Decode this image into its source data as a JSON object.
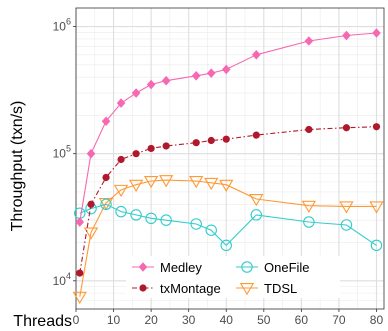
{
  "chart_data": {
    "type": "line",
    "title": "",
    "xlabel": "Threads",
    "ylabel": "Throughput (txn/s)",
    "y_scale": "log",
    "xlim": [
      0,
      82
    ],
    "ylim": [
      6000,
      1400000
    ],
    "x_ticks": [
      0,
      10,
      20,
      30,
      40,
      50,
      60,
      70,
      80
    ],
    "x_tick_labels": [
      "0",
      "10",
      "20",
      "30",
      "40",
      "50",
      "60",
      "70",
      "80"
    ],
    "y_ticks": [
      10000,
      100000,
      1000000
    ],
    "y_tick_labels": [
      {
        "base": "10",
        "exp": "4"
      },
      {
        "base": "10",
        "exp": "5"
      },
      {
        "base": "10",
        "exp": "6"
      }
    ],
    "grid": true,
    "legend": {
      "position": "bottom-center",
      "columns": 2
    },
    "series": [
      {
        "name": "Medley",
        "color": "#f768b2",
        "marker": "diamond",
        "line": "solid",
        "x": [
          1,
          4,
          8,
          12,
          16,
          20,
          24,
          32,
          36,
          40,
          48,
          62,
          72,
          80
        ],
        "y": [
          29000,
          100000,
          180000,
          250000,
          300000,
          350000,
          375000,
          410000,
          430000,
          460000,
          600000,
          770000,
          850000,
          890000
        ]
      },
      {
        "name": "txMontage",
        "color": "#b2182b",
        "marker": "circle",
        "line": "dashdot",
        "x": [
          1,
          4,
          8,
          12,
          16,
          20,
          24,
          32,
          36,
          40,
          48,
          62,
          72,
          80
        ],
        "y": [
          11500,
          40000,
          65000,
          90000,
          100000,
          110000,
          115000,
          122000,
          127000,
          130000,
          140000,
          155000,
          160000,
          163000
        ]
      },
      {
        "name": "OneFile",
        "color": "#33cccc",
        "marker": "circle-open",
        "line": "solid",
        "x": [
          1,
          4,
          8,
          12,
          16,
          20,
          24,
          32,
          36,
          40,
          48,
          62,
          72,
          80
        ],
        "y": [
          34000,
          37000,
          40000,
          35000,
          33000,
          31000,
          30000,
          28000,
          25000,
          19000,
          33000,
          29000,
          27500,
          19000
        ]
      },
      {
        "name": "TDSL",
        "color": "#ff9933",
        "marker": "triangle-down-open",
        "line": "solid",
        "x": [
          1,
          4,
          8,
          12,
          16,
          20,
          24,
          32,
          36,
          40,
          48,
          62,
          72,
          80
        ],
        "y": [
          7500,
          24000,
          41000,
          52000,
          57000,
          61000,
          62000,
          61000,
          59000,
          57000,
          44000,
          39000,
          38500,
          38500
        ]
      }
    ]
  }
}
